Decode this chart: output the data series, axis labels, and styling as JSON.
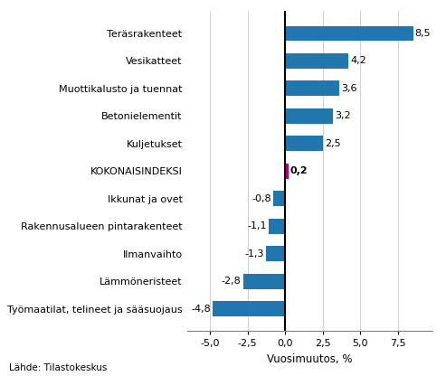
{
  "categories": [
    "Työmaatilat, telineet ja sääsuojaus",
    "Lämmöneristeet",
    "Ilmanvaihto",
    "Rakennusalueen pintarakenteet",
    "Ikkunat ja ovet",
    "KOKONAISINDEKSI",
    "Kuljetukset",
    "Betonielementit",
    "Muottikalusto ja tuennat",
    "Vesikatteet",
    "Teräsrakenteet"
  ],
  "values": [
    -4.8,
    -2.8,
    -1.3,
    -1.1,
    -0.8,
    0.2,
    2.5,
    3.2,
    3.6,
    4.2,
    8.5
  ],
  "xlabel": "Vuosimuutos, %",
  "xlim": [
    -6.5,
    9.8
  ],
  "xticks": [
    -5.0,
    -2.5,
    0.0,
    2.5,
    5.0,
    7.5
  ],
  "xtick_labels": [
    "-5,0",
    "-2,5",
    "0,0",
    "2,5",
    "5,0",
    "7,5"
  ],
  "source_text": "Lähde: Tilastokeskus",
  "bar_width": 0.55,
  "blue_color": "#2176ae",
  "pink_color": "#b5006e",
  "label_fontsize": 8.0,
  "axis_fontsize": 8.0,
  "xlabel_fontsize": 8.5,
  "value_label_fontsize": 8.0
}
